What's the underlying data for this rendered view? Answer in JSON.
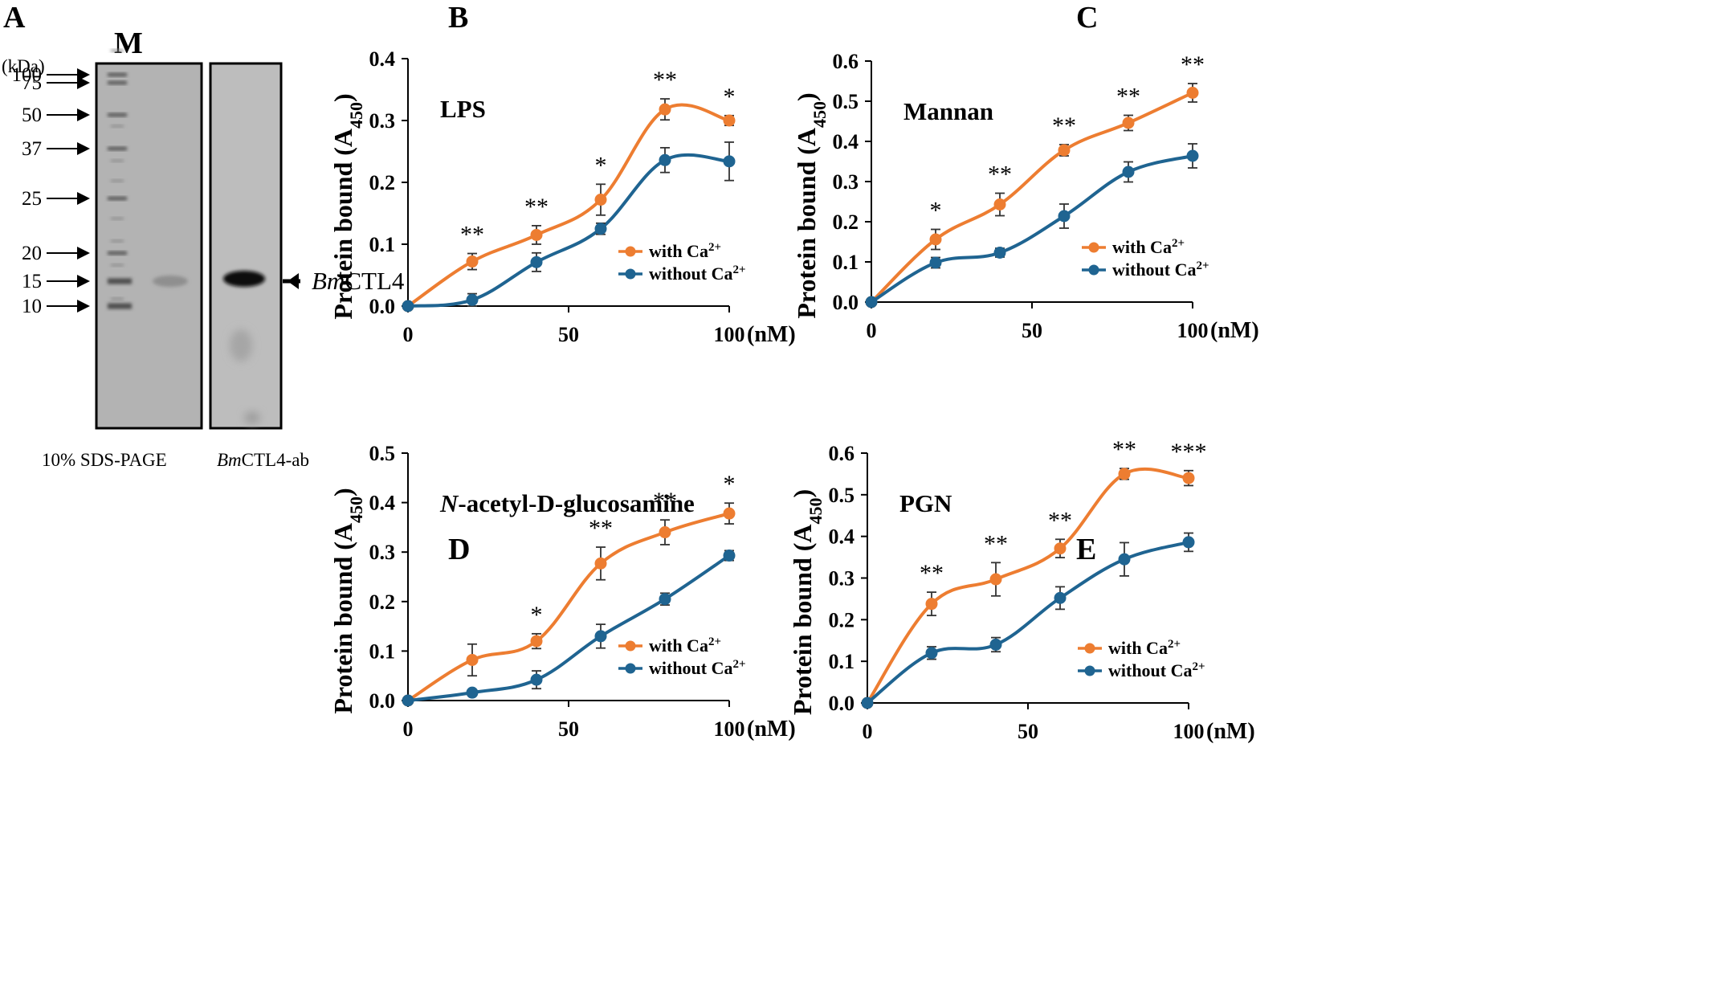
{
  "gel": {
    "letter": "A",
    "lane_marker": "M",
    "unit": "(kDa)",
    "mw_markers": [
      "100",
      "75",
      "50",
      "37",
      "25",
      "20",
      "15",
      "10"
    ],
    "band_label": "BmCTL4",
    "band_label_italic": "Bm",
    "band_label_rest": "CTL4",
    "caption_left": "10% SDS-PAGE",
    "caption_right_italic": "Bm",
    "caption_right_rest": "CTL4-ab"
  },
  "colors": {
    "with": "#ED7D31",
    "without": "#1F6491",
    "gel_bg": "#b3b3b3",
    "blot_bg": "#bdbdbd"
  },
  "legend": {
    "with_label": "with Ca",
    "without_label": "without Ca",
    "superscript": "2+"
  },
  "chart_data": [
    {
      "letter": "B",
      "type": "line",
      "title": "LPS",
      "ylabel": "Protein bound (A",
      "ylabel_sub": "450",
      "ylabel_close": ")",
      "xunit": "(nM)",
      "x": [
        0,
        20,
        40,
        60,
        80,
        100
      ],
      "xticks": [
        "0",
        "50",
        "100"
      ],
      "ylim": [
        0,
        0.4
      ],
      "yticks": [
        "0.0",
        "0.1",
        "0.2",
        "0.3",
        "0.4"
      ],
      "series": [
        {
          "name": "with Ca2+",
          "values": [
            0,
            0.072,
            0.115,
            0.172,
            0.318,
            0.3
          ],
          "errors": [
            0,
            0.013,
            0.015,
            0.025,
            0.017,
            0.008
          ]
        },
        {
          "name": "without Ca2+",
          "values": [
            0,
            0.01,
            0.071,
            0.125,
            0.236,
            0.234
          ],
          "errors": [
            0,
            0.01,
            0.015,
            0.009,
            0.02,
            0.031
          ]
        }
      ],
      "significance": [
        "",
        "**",
        "**",
        "*",
        "**",
        "*"
      ]
    },
    {
      "letter": "C",
      "type": "line",
      "title": "Mannan",
      "ylabel": "Protein bound (A",
      "ylabel_sub": "450",
      "ylabel_close": ")",
      "xunit": "(nM)",
      "x": [
        0,
        20,
        40,
        60,
        80,
        100
      ],
      "xticks": [
        "0",
        "50",
        "100"
      ],
      "ylim": [
        0,
        0.6
      ],
      "yticks": [
        "0.0",
        "0.1",
        "0.2",
        "0.3",
        "0.4",
        "0.5",
        "0.6"
      ],
      "series": [
        {
          "name": "with Ca2+",
          "values": [
            0,
            0.156,
            0.243,
            0.378,
            0.446,
            0.521
          ],
          "errors": [
            0,
            0.025,
            0.028,
            0.014,
            0.019,
            0.023
          ]
        },
        {
          "name": "without Ca2+",
          "values": [
            0,
            0.098,
            0.123,
            0.214,
            0.324,
            0.364
          ],
          "errors": [
            0,
            0.013,
            0.011,
            0.03,
            0.025,
            0.03
          ]
        }
      ],
      "significance": [
        "",
        "*",
        "**",
        "**",
        "**",
        "**"
      ]
    },
    {
      "letter": "D",
      "type": "line",
      "title": "N-acetyl-D-glucosamine",
      "title_italic": "N",
      "title_rest": "-acetyl-D-glucosamine",
      "ylabel": "Protein bound (A",
      "ylabel_sub": "450",
      "ylabel_close": ")",
      "xunit": "(nM)",
      "x": [
        0,
        20,
        40,
        60,
        80,
        100
      ],
      "xticks": [
        "0",
        "50",
        "100"
      ],
      "ylim": [
        0,
        0.5
      ],
      "yticks": [
        "0.0",
        "0.1",
        "0.2",
        "0.3",
        "0.4",
        "0.5"
      ],
      "series": [
        {
          "name": "with Ca2+",
          "values": [
            0,
            0.082,
            0.12,
            0.277,
            0.34,
            0.378
          ],
          "errors": [
            0,
            0.032,
            0.015,
            0.033,
            0.025,
            0.021
          ]
        },
        {
          "name": "without Ca2+",
          "values": [
            0,
            0.016,
            0.042,
            0.13,
            0.205,
            0.293
          ],
          "errors": [
            0,
            0.006,
            0.018,
            0.024,
            0.012,
            0.01
          ]
        }
      ],
      "significance": [
        "",
        "",
        "*",
        "**",
        "**",
        "*"
      ]
    },
    {
      "letter": "E",
      "type": "line",
      "title": "PGN",
      "ylabel": "Protein bound (A",
      "ylabel_sub": "450",
      "ylabel_close": ")",
      "xunit": "(nM)",
      "x": [
        0,
        20,
        40,
        60,
        80,
        100
      ],
      "xticks": [
        "0",
        "50",
        "100"
      ],
      "ylim": [
        0,
        0.6
      ],
      "yticks": [
        "0.0",
        "0.1",
        "0.2",
        "0.3",
        "0.4",
        "0.5",
        "0.6"
      ],
      "series": [
        {
          "name": "with Ca2+",
          "values": [
            0,
            0.238,
            0.297,
            0.371,
            0.55,
            0.54
          ],
          "errors": [
            0,
            0.028,
            0.04,
            0.022,
            0.013,
            0.018
          ]
        },
        {
          "name": "without Ca2+",
          "values": [
            0,
            0.12,
            0.14,
            0.252,
            0.345,
            0.386
          ],
          "errors": [
            0,
            0.015,
            0.017,
            0.027,
            0.04,
            0.022
          ]
        }
      ],
      "significance": [
        "",
        "**",
        "**",
        "**",
        "**",
        "***"
      ]
    }
  ]
}
